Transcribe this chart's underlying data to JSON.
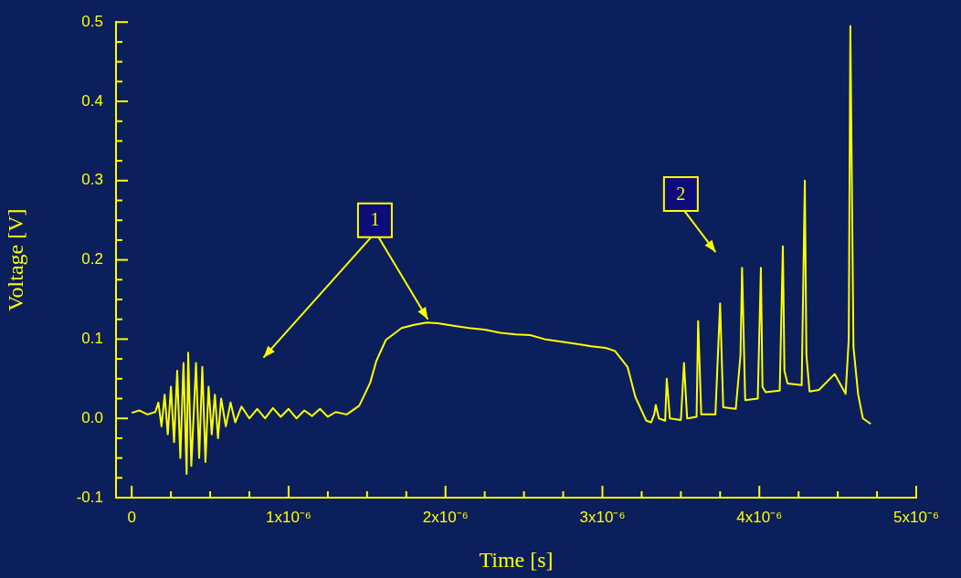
{
  "chart_data": {
    "type": "line",
    "xlabel": "Time [s]",
    "ylabel": "Voltage [V]",
    "x": [
      0,
      5e-08,
      1e-07,
      1.5e-07,
      1.7e-07,
      1.9e-07,
      2.1e-07,
      2.3e-07,
      2.5e-07,
      2.7e-07,
      2.9e-07,
      3.1e-07,
      3.3e-07,
      3.5e-07,
      3.6e-07,
      3.8e-07,
      4.1e-07,
      4.3e-07,
      4.5e-07,
      4.7e-07,
      4.9e-07,
      5.1e-07,
      5.3e-07,
      5.5e-07,
      5.7e-07,
      6e-07,
      6.3e-07,
      6.6e-07,
      7e-07,
      7.5e-07,
      8e-07,
      8.5e-07,
      9e-07,
      9.5e-07,
      1e-06,
      1.05e-06,
      1.1e-06,
      1.15e-06,
      1.2e-06,
      1.25e-06,
      1.3e-06,
      1.37e-06,
      1.45e-06,
      1.52e-06,
      1.56e-06,
      1.62e-06,
      1.72e-06,
      1.8e-06,
      1.88e-06,
      1.95e-06,
      2.05e-06,
      2.15e-06,
      2.25e-06,
      2.35e-06,
      2.45e-06,
      2.54e-06,
      2.63e-06,
      2.73e-06,
      2.83e-06,
      2.93e-06,
      3.02e-06,
      3.08e-06,
      3.16e-06,
      3.21e-06,
      3.28e-06,
      3.31e-06,
      3.33e-06,
      3.34e-06,
      3.36e-06,
      3.4e-06,
      3.41e-06,
      3.43e-06,
      3.5e-06,
      3.52e-06,
      3.54e-06,
      3.6e-06,
      3.61e-06,
      3.63e-06,
      3.72e-06,
      3.75e-06,
      3.77e-06,
      3.85e-06,
      3.88e-06,
      3.89e-06,
      3.91e-06,
      3.99e-06,
      4.01e-06,
      4.02e-06,
      4.04e-06,
      4.13e-06,
      4.15e-06,
      4.16e-06,
      4.18e-06,
      4.27e-06,
      4.29e-06,
      4.3e-06,
      4.32e-06,
      4.38e-06,
      4.48e-06,
      4.55e-06,
      4.57e-06,
      4.58e-06,
      4.6e-06,
      4.63e-06,
      4.66e-06,
      4.71e-06
    ],
    "series": [
      {
        "color": "#ffff00",
        "values": [
          0.007,
          0.01,
          0.005,
          0.008,
          0.02,
          -0.01,
          0.03,
          -0.02,
          0.04,
          -0.03,
          0.06,
          -0.05,
          0.07,
          -0.07,
          0.083,
          -0.06,
          0.07,
          -0.05,
          0.065,
          -0.055,
          0.04,
          -0.02,
          0.03,
          -0.025,
          0.025,
          -0.01,
          0.02,
          -0.005,
          0.015,
          0.0,
          0.012,
          0.0,
          0.013,
          0.002,
          0.012,
          0.0,
          0.01,
          0.003,
          0.012,
          0.002,
          0.008,
          0.005,
          0.016,
          0.045,
          0.073,
          0.099,
          0.114,
          0.118,
          0.121,
          0.12,
          0.117,
          0.114,
          0.112,
          0.108,
          0.106,
          0.105,
          0.1,
          0.097,
          0.094,
          0.091,
          0.089,
          0.085,
          0.065,
          0.027,
          -0.003,
          -0.005,
          0.005,
          0.017,
          0.0,
          -0.003,
          0.05,
          0.0,
          -0.002,
          0.07,
          0.0,
          0.002,
          0.123,
          0.005,
          0.005,
          0.145,
          0.014,
          0.012,
          0.08,
          0.19,
          0.023,
          0.025,
          0.19,
          0.04,
          0.033,
          0.035,
          0.217,
          0.06,
          0.044,
          0.042,
          0.3,
          0.08,
          0.034,
          0.036,
          0.056,
          0.031,
          0.1,
          0.495,
          0.09,
          0.03,
          0.0,
          -0.007
        ]
      }
    ],
    "xlim": [
      -1e-07,
      5e-06
    ],
    "xticks": [
      {
        "value": 0,
        "label": "0"
      },
      {
        "value": 2.5e-07,
        "label": null
      },
      {
        "value": 5e-07,
        "label": null
      },
      {
        "value": 7.5e-07,
        "label": null
      },
      {
        "value": 1e-06,
        "label": "1x10⁻⁶"
      },
      {
        "value": 1.25e-06,
        "label": null
      },
      {
        "value": 1.5e-06,
        "label": null
      },
      {
        "value": 1.75e-06,
        "label": null
      },
      {
        "value": 2e-06,
        "label": "2x10⁻⁶"
      },
      {
        "value": 2.25e-06,
        "label": null
      },
      {
        "value": 2.5e-06,
        "label": null
      },
      {
        "value": 2.75e-06,
        "label": null
      },
      {
        "value": 3e-06,
        "label": "3x10⁻⁶"
      },
      {
        "value": 3.25e-06,
        "label": null
      },
      {
        "value": 3.5e-06,
        "label": null
      },
      {
        "value": 3.75e-06,
        "label": null
      },
      {
        "value": 4e-06,
        "label": "4x10⁻⁶"
      },
      {
        "value": 4.25e-06,
        "label": null
      },
      {
        "value": 4.5e-06,
        "label": null
      },
      {
        "value": 4.75e-06,
        "label": null
      },
      {
        "value": 5e-06,
        "label": "5x10⁻⁶"
      }
    ],
    "ylim": [
      -0.1,
      0.5
    ],
    "yticks": [
      {
        "value": -0.1,
        "label": "-0.1"
      },
      {
        "value": -0.075,
        "label": null
      },
      {
        "value": -0.05,
        "label": null
      },
      {
        "value": -0.025,
        "label": null
      },
      {
        "value": 0,
        "label": "0.0"
      },
      {
        "value": 0.025,
        "label": null
      },
      {
        "value": 0.05,
        "label": null
      },
      {
        "value": 0.075,
        "label": null
      },
      {
        "value": 0.1,
        "label": "0.1"
      },
      {
        "value": 0.125,
        "label": null
      },
      {
        "value": 0.15,
        "label": null
      },
      {
        "value": 0.175,
        "label": null
      },
      {
        "value": 0.2,
        "label": "0.2"
      },
      {
        "value": 0.225,
        "label": null
      },
      {
        "value": 0.25,
        "label": null
      },
      {
        "value": 0.275,
        "label": null
      },
      {
        "value": 0.3,
        "label": "0.3"
      },
      {
        "value": 0.325,
        "label": null
      },
      {
        "value": 0.35,
        "label": null
      },
      {
        "value": 0.375,
        "label": null
      },
      {
        "value": 0.4,
        "label": "0.4"
      },
      {
        "value": 0.425,
        "label": null
      },
      {
        "value": 0.45,
        "label": null
      },
      {
        "value": 0.475,
        "label": null
      },
      {
        "value": 0.5,
        "label": "0.5"
      }
    ],
    "annotations": [
      {
        "text": "1",
        "x": 1.55e-06,
        "y": 0.25
      },
      {
        "text": "2",
        "x": 3.5e-06,
        "y": 0.283
      }
    ],
    "grid": false,
    "legend": false,
    "marker": "none",
    "line_style": "solid"
  }
}
